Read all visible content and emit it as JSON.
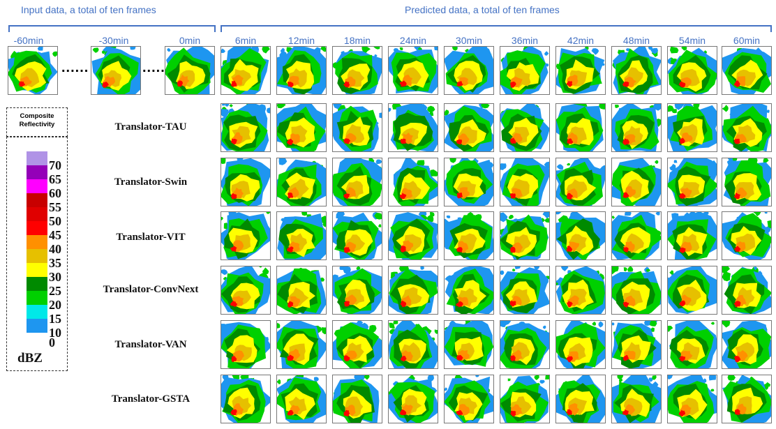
{
  "headers": {
    "input": "Input data, a total of ten frames",
    "predicted": "Predicted data, a total of ten frames"
  },
  "input_times": [
    "-60min",
    "-30min",
    "0min"
  ],
  "ellipsis": "......",
  "predicted_times": [
    "6min",
    "12min",
    "18min",
    "24min",
    "30min",
    "36min",
    "42min",
    "48min",
    "54min",
    "60min"
  ],
  "models": [
    "Translator-TAU",
    "Translator-Swin",
    "Translator-VIT",
    "Translator-ConvNext",
    "Translator-VAN",
    "Translator-GSTA"
  ],
  "legend": {
    "title_line1": "Composite",
    "title_line2": "Reflectivity",
    "unit": "dBZ",
    "levels": [
      {
        "label": "70",
        "color": "#b093e6"
      },
      {
        "label": "65",
        "color": "#9400b8"
      },
      {
        "label": "60",
        "color": "#ff00ff"
      },
      {
        "label": "55",
        "color": "#c80000"
      },
      {
        "label": "50",
        "color": "#e00000"
      },
      {
        "label": "45",
        "color": "#ff0000"
      },
      {
        "label": "40",
        "color": "#ff9000"
      },
      {
        "label": "35",
        "color": "#e6c000"
      },
      {
        "label": "30",
        "color": "#ffff00"
      },
      {
        "label": "25",
        "color": "#008a00"
      },
      {
        "label": "20",
        "color": "#00d000"
      },
      {
        "label": "15",
        "color": "#00e8e8"
      },
      {
        "label": "10",
        "color": "#1e96f0"
      },
      {
        "label": "0",
        "color": "#ffffff"
      }
    ]
  }
}
